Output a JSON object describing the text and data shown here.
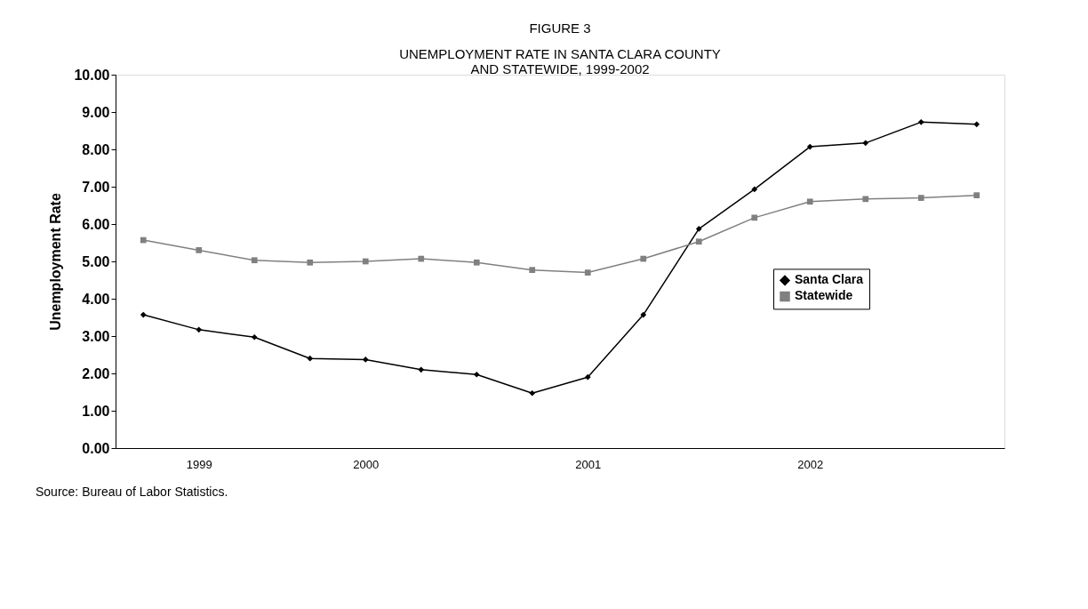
{
  "chart_data": {
    "type": "line",
    "title": "FIGURE 3",
    "subtitle": "UNEMPLOYMENT RATE IN SANTA CLARA COUNTY\nAND STATEWIDE, 1999-2002",
    "ylabel": "Unemployment Rate",
    "categories": [
      null,
      "1999",
      null,
      null,
      "2000",
      null,
      null,
      null,
      "2001",
      null,
      null,
      null,
      "2002",
      null,
      null,
      null
    ],
    "series": [
      {
        "name": "Santa Clara",
        "color": "#000000",
        "marker": "diamond",
        "values": [
          3.57,
          3.17,
          2.97,
          2.4,
          2.37,
          2.1,
          1.97,
          1.47,
          1.9,
          3.57,
          5.87,
          6.93,
          8.07,
          8.17,
          8.73,
          8.67
        ]
      },
      {
        "name": "Statewide",
        "color": "#808080",
        "marker": "square",
        "values": [
          5.57,
          5.3,
          5.03,
          4.97,
          5.0,
          5.07,
          4.97,
          4.77,
          4.7,
          5.07,
          5.53,
          6.17,
          6.6,
          6.67,
          6.7,
          6.77
        ]
      }
    ],
    "ylim": [
      0,
      10
    ],
    "yticks": [
      {
        "value": 0,
        "label": "0.00"
      },
      {
        "value": 1,
        "label": "1.00"
      },
      {
        "value": 2,
        "label": "2.00"
      },
      {
        "value": 3,
        "label": "3.00"
      },
      {
        "value": 4,
        "label": "4.00"
      },
      {
        "value": 5,
        "label": "5.00"
      },
      {
        "value": 6,
        "label": "6.00"
      },
      {
        "value": 7,
        "label": "7.00"
      },
      {
        "value": 8,
        "label": "8.00"
      },
      {
        "value": 9,
        "label": "9.00"
      },
      {
        "value": 10,
        "label": "10.00"
      }
    ],
    "grid": false,
    "legend": "right",
    "line_style": "solid",
    "annotations": [
      "Source:  Bureau of Labor Statistics."
    ]
  }
}
